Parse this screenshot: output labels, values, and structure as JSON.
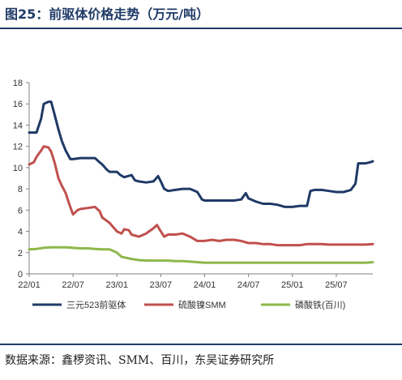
{
  "figure": {
    "title": "图25：前驱体价格走势（万元/吨）",
    "source": "数据来源：鑫椤资讯、SMM、百川，东吴证券研究所"
  },
  "chart_data": {
    "type": "line",
    "title": "",
    "xlabel": "",
    "ylabel": "",
    "x_tick_labels": [
      "22/01",
      "22/07",
      "23/01",
      "23/07",
      "24/01",
      "24/07",
      "25/01",
      "25/07"
    ],
    "xlim": [
      "2022-01",
      "2025-12"
    ],
    "ylim": [
      0,
      18
    ],
    "y_ticks": [
      0,
      2,
      4,
      6,
      8,
      10,
      12,
      14,
      16,
      18
    ],
    "grid": false,
    "legend_position": "bottom",
    "series": [
      {
        "name": "三元523前驱体",
        "color": "#1f3a67",
        "points": [
          [
            "2022-01",
            13.3
          ],
          [
            "2022-02",
            13.3
          ],
          [
            "2022-02-20",
            14.6
          ],
          [
            "2022-03",
            16.0
          ],
          [
            "2022-03-20",
            16.2
          ],
          [
            "2022-04",
            16.2
          ],
          [
            "2022-04-15",
            15.0
          ],
          [
            "2022-05",
            13.6
          ],
          [
            "2022-05-15",
            12.5
          ],
          [
            "2022-06",
            11.6
          ],
          [
            "2022-06-20",
            10.8
          ],
          [
            "2022-07",
            10.8
          ],
          [
            "2022-08",
            10.9
          ],
          [
            "2022-09",
            10.9
          ],
          [
            "2022-10",
            10.9
          ],
          [
            "2022-10-20",
            10.5
          ],
          [
            "2022-11",
            10.3
          ],
          [
            "2022-11-20",
            9.8
          ],
          [
            "2022-12",
            9.6
          ],
          [
            "2023-01",
            9.6
          ],
          [
            "2023-01-15",
            9.3
          ],
          [
            "2023-02",
            9.1
          ],
          [
            "2023-03",
            9.3
          ],
          [
            "2023-03-15",
            8.8
          ],
          [
            "2023-04",
            8.7
          ],
          [
            "2023-05",
            8.6
          ],
          [
            "2023-06",
            8.7
          ],
          [
            "2023-06-20",
            9.2
          ],
          [
            "2023-07",
            8.7
          ],
          [
            "2023-07-15",
            8.0
          ],
          [
            "2023-08",
            7.8
          ],
          [
            "2023-09",
            7.9
          ],
          [
            "2023-10",
            8.0
          ],
          [
            "2023-11",
            8.0
          ],
          [
            "2023-12",
            7.7
          ],
          [
            "2023-12-20",
            7.0
          ],
          [
            "2024-01",
            6.9
          ],
          [
            "2024-02",
            6.9
          ],
          [
            "2024-03",
            6.9
          ],
          [
            "2024-04",
            6.9
          ],
          [
            "2024-05",
            6.9
          ],
          [
            "2024-06",
            7.0
          ],
          [
            "2024-06-20",
            7.6
          ],
          [
            "2024-07",
            7.1
          ],
          [
            "2024-08",
            6.8
          ],
          [
            "2024-09",
            6.6
          ],
          [
            "2024-10",
            6.6
          ],
          [
            "2024-11",
            6.5
          ],
          [
            "2024-12",
            6.3
          ],
          [
            "2025-01",
            6.3
          ],
          [
            "2025-02",
            6.4
          ],
          [
            "2025-03",
            6.4
          ],
          [
            "2025-03-15",
            7.8
          ],
          [
            "2025-04",
            7.9
          ],
          [
            "2025-05",
            7.9
          ],
          [
            "2025-06",
            7.8
          ],
          [
            "2025-07",
            7.7
          ],
          [
            "2025-08",
            7.7
          ],
          [
            "2025-09",
            7.9
          ],
          [
            "2025-09-20",
            8.5
          ],
          [
            "2025-10",
            10.4
          ],
          [
            "2025-11",
            10.4
          ],
          [
            "2025-11-20",
            10.5
          ],
          [
            "2025-12",
            10.6
          ]
        ]
      },
      {
        "name": "硫酸镍SMM",
        "color": "#c0504d",
        "points": [
          [
            "2022-01",
            10.3
          ],
          [
            "2022-01-20",
            10.5
          ],
          [
            "2022-02",
            11.0
          ],
          [
            "2022-02-20",
            11.6
          ],
          [
            "2022-03",
            12.0
          ],
          [
            "2022-03-20",
            11.9
          ],
          [
            "2022-04",
            11.5
          ],
          [
            "2022-04-15",
            10.5
          ],
          [
            "2022-05",
            9.0
          ],
          [
            "2022-05-15",
            8.3
          ],
          [
            "2022-06",
            7.6
          ],
          [
            "2022-06-15",
            6.6
          ],
          [
            "2022-07",
            5.6
          ],
          [
            "2022-07-20",
            6.0
          ],
          [
            "2022-08",
            6.1
          ],
          [
            "2022-09",
            6.2
          ],
          [
            "2022-10",
            6.3
          ],
          [
            "2022-10-20",
            5.9
          ],
          [
            "2022-11",
            5.3
          ],
          [
            "2022-12",
            4.8
          ],
          [
            "2023-01",
            4.0
          ],
          [
            "2023-01-20",
            3.8
          ],
          [
            "2023-02",
            4.2
          ],
          [
            "2023-02-20",
            4.1
          ],
          [
            "2023-03",
            3.7
          ],
          [
            "2023-04",
            3.5
          ],
          [
            "2023-05",
            3.8
          ],
          [
            "2023-06",
            4.3
          ],
          [
            "2023-06-15",
            4.6
          ],
          [
            "2023-07",
            4.0
          ],
          [
            "2023-07-15",
            3.5
          ],
          [
            "2023-08",
            3.7
          ],
          [
            "2023-09",
            3.7
          ],
          [
            "2023-10",
            3.8
          ],
          [
            "2023-11",
            3.5
          ],
          [
            "2023-12",
            3.1
          ],
          [
            "2024-01",
            3.1
          ],
          [
            "2024-02",
            3.2
          ],
          [
            "2024-03",
            3.1
          ],
          [
            "2024-04",
            3.2
          ],
          [
            "2024-05",
            3.2
          ],
          [
            "2024-06",
            3.1
          ],
          [
            "2024-07",
            2.9
          ],
          [
            "2024-08",
            2.9
          ],
          [
            "2024-09",
            2.8
          ],
          [
            "2024-10",
            2.8
          ],
          [
            "2024-11",
            2.7
          ],
          [
            "2024-12",
            2.7
          ],
          [
            "2025-01",
            2.7
          ],
          [
            "2025-02",
            2.7
          ],
          [
            "2025-03",
            2.8
          ],
          [
            "2025-04",
            2.8
          ],
          [
            "2025-05",
            2.8
          ],
          [
            "2025-06",
            2.75
          ],
          [
            "2025-07",
            2.75
          ],
          [
            "2025-08",
            2.75
          ],
          [
            "2025-09",
            2.75
          ],
          [
            "2025-10",
            2.75
          ],
          [
            "2025-11",
            2.75
          ],
          [
            "2025-12",
            2.8
          ]
        ]
      },
      {
        "name": "磷酸铁(百川)",
        "color": "#8db84a",
        "points": [
          [
            "2022-01",
            2.3
          ],
          [
            "2022-02",
            2.35
          ],
          [
            "2022-03",
            2.45
          ],
          [
            "2022-04",
            2.5
          ],
          [
            "2022-05",
            2.5
          ],
          [
            "2022-06",
            2.5
          ],
          [
            "2022-07",
            2.45
          ],
          [
            "2022-08",
            2.4
          ],
          [
            "2022-09",
            2.4
          ],
          [
            "2022-10",
            2.35
          ],
          [
            "2022-11",
            2.3
          ],
          [
            "2022-12",
            2.3
          ],
          [
            "2023-01",
            2.0
          ],
          [
            "2023-01-20",
            1.6
          ],
          [
            "2023-02",
            1.55
          ],
          [
            "2023-03",
            1.4
          ],
          [
            "2023-04",
            1.3
          ],
          [
            "2023-05",
            1.25
          ],
          [
            "2023-06",
            1.25
          ],
          [
            "2023-07",
            1.25
          ],
          [
            "2023-08",
            1.25
          ],
          [
            "2023-09",
            1.2
          ],
          [
            "2023-10",
            1.2
          ],
          [
            "2023-11",
            1.15
          ],
          [
            "2023-12",
            1.1
          ],
          [
            "2024-01",
            1.05
          ],
          [
            "2024-02",
            1.05
          ],
          [
            "2024-03",
            1.05
          ],
          [
            "2024-04",
            1.05
          ],
          [
            "2024-05",
            1.05
          ],
          [
            "2024-06",
            1.05
          ],
          [
            "2024-07",
            1.05
          ],
          [
            "2024-08",
            1.05
          ],
          [
            "2024-09",
            1.05
          ],
          [
            "2024-10",
            1.05
          ],
          [
            "2024-11",
            1.05
          ],
          [
            "2024-12",
            1.05
          ],
          [
            "2025-01",
            1.05
          ],
          [
            "2025-02",
            1.05
          ],
          [
            "2025-03",
            1.05
          ],
          [
            "2025-04",
            1.05
          ],
          [
            "2025-05",
            1.05
          ],
          [
            "2025-06",
            1.05
          ],
          [
            "2025-07",
            1.05
          ],
          [
            "2025-08",
            1.05
          ],
          [
            "2025-09",
            1.05
          ],
          [
            "2025-10",
            1.05
          ],
          [
            "2025-11",
            1.05
          ],
          [
            "2025-12",
            1.1
          ]
        ]
      }
    ]
  }
}
